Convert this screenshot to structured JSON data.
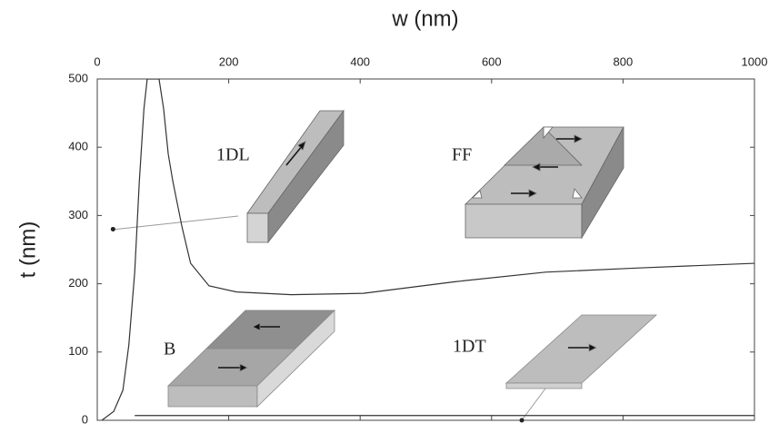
{
  "chart_data": {
    "type": "line",
    "xlabel": "w (nm)",
    "ylabel": "t (nm)",
    "xlim": [
      0,
      1000
    ],
    "xticks": [
      0,
      200,
      400,
      600,
      800,
      1000
    ],
    "ylim": [
      0,
      500
    ],
    "yticks": [
      0,
      100,
      200,
      300,
      400,
      500
    ],
    "series": [
      {
        "color": "#333333",
        "x": [
          7,
          25,
          39,
          48,
          57,
          64,
          71,
          76,
          94,
          101,
          108,
          115,
          129,
          142,
          170,
          212,
          295,
          405,
          544,
          682,
          820,
          1000
        ],
        "values": [
          0,
          13,
          44,
          110,
          217,
          350,
          456,
          500,
          500,
          456,
          390,
          350,
          283,
          230,
          197,
          188,
          184,
          186,
          203,
          217,
          223,
          230
        ]
      },
      {
        "color": "#333333",
        "x": [
          57,
          1000
        ],
        "values": [
          7,
          7
        ]
      }
    ],
    "points": {
      "color": "#222222",
      "x": [
        24,
        646
      ],
      "values": [
        280,
        0
      ]
    },
    "annotations": [
      "1DL",
      "FF",
      "B",
      "1DT"
    ]
  }
}
